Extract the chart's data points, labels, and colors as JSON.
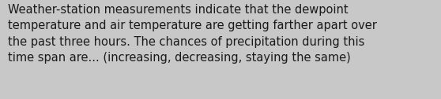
{
  "text": "Weather-station measurements indicate that the dewpoint\ntemperature and air temperature are getting farther apart over\nthe past three hours. The chances of precipitation during this\ntime span are... (increasing, decreasing, staying the same)",
  "background_color": "#c8c8c8",
  "text_color": "#1a1a1a",
  "font_size": 10.5,
  "font_family": "DejaVu Sans",
  "fig_width": 5.58,
  "fig_height": 1.26,
  "dpi": 100
}
